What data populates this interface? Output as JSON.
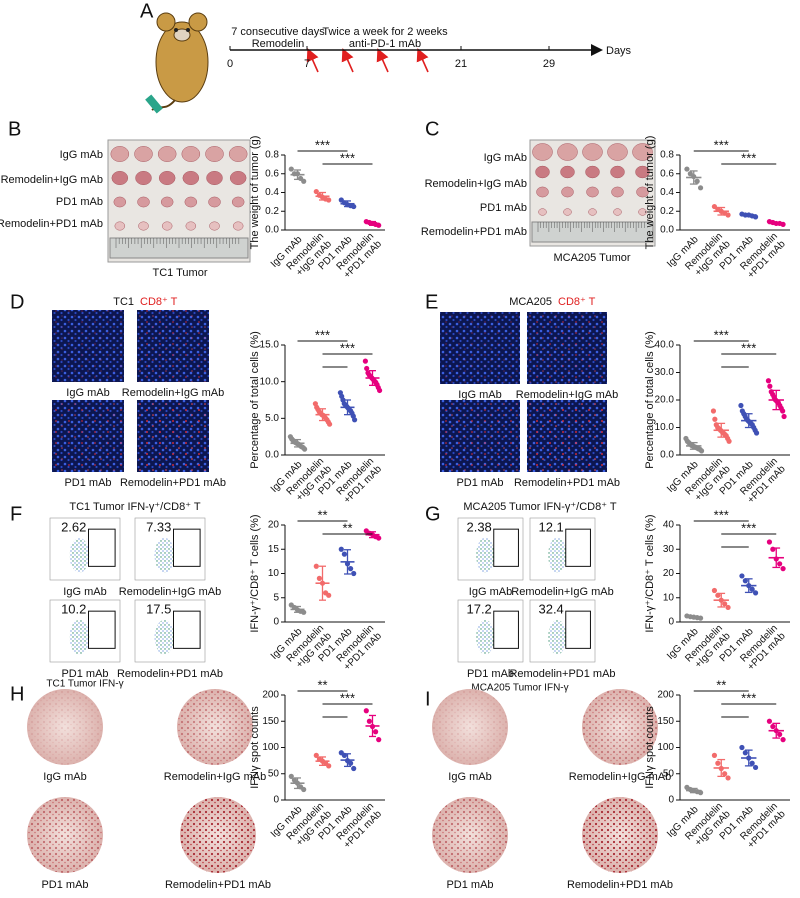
{
  "figure": {
    "a": {
      "letter": "A",
      "phase1": "7 consecutive days",
      "drug1": "Remodelin",
      "phase2": "Twice a week for 2 weeks",
      "drug2": "anti-PD-1 mAb",
      "axis_label": "Days",
      "day_ticks": [
        0,
        7,
        21,
        29
      ]
    },
    "b": {
      "letter": "B",
      "row_labels": [
        "IgG mAb",
        "Remodelin+IgG mAb",
        "PD1 mAb",
        "Remodelin+PD1 mAb"
      ],
      "caption": "TC1 Tumor"
    },
    "c": {
      "letter": "C",
      "row_labels": [
        "IgG mAb",
        "Remodelin+IgG mAb",
        "PD1 mAb",
        "Remodelin+PD1 mAb"
      ],
      "caption": "MCA205 Tumor"
    },
    "d": {
      "letter": "D",
      "header": "TC1",
      "stain": "CD8⁺ T",
      "image_labels": [
        "IgG mAb",
        "Remodelin+IgG mAb",
        "PD1 mAb",
        "Remodelin+PD1 mAb"
      ]
    },
    "e": {
      "letter": "E",
      "header": "MCA205",
      "stain": "CD8⁺ T",
      "image_labels": [
        "IgG mAb",
        "Remodelin+IgG mAb",
        "PD1 mAb",
        "Remodelin+PD1 mAb"
      ]
    },
    "f": {
      "letter": "F",
      "header": "TC1 Tumor IFN-γ⁺/CD8⁺ T",
      "image_labels": [
        "IgG mAb",
        "Remodelin+IgG mAb",
        "PD1 mAb",
        "Remodelin+PD1 mAb"
      ],
      "gate_values": [
        2.62,
        7.33,
        10.2,
        17.5
      ]
    },
    "g": {
      "letter": "G",
      "header": "MCA205 Tumor IFN-γ⁺/CD8⁺ T",
      "image_labels": [
        "IgG mAb",
        "Remodelin+IgG mAb",
        "PD1 mAb",
        "Remodelin+PD1 mAb"
      ],
      "gate_values": [
        2.38,
        12.1,
        17.2,
        32.4
      ]
    },
    "h": {
      "letter": "H",
      "header": "TC1 Tumor IFN-γ",
      "image_labels": [
        "IgG mAb",
        "Remodelin+IgG mAb",
        "PD1 mAb",
        "Remodelin+PD1 mAb"
      ]
    },
    "i": {
      "letter": "I",
      "header": "MCA205 Tumor IFN-γ",
      "image_labels": [
        "IgG mAb",
        "Remodelin+IgG mAb",
        "PD1 mAb",
        "Remodelin+PD1 mAb"
      ]
    }
  },
  "chart_data": [
    {
      "type": "dot",
      "y_label": "The weight of tumor (g)",
      "categories": [
        "IgG mAb",
        "Remodelin +IgG mAb",
        "PD1 mAb",
        "Remodelin +PD1 mAb"
      ],
      "colors": [
        "#8c8c8c",
        "#f26b6b",
        "#3f51b5",
        "#e6007e"
      ],
      "points": [
        [
          0.65,
          0.6,
          0.6,
          0.55,
          0.52
        ],
        [
          0.41,
          0.37,
          0.35,
          0.33,
          0.32
        ],
        [
          0.32,
          0.29,
          0.27,
          0.26,
          0.25
        ],
        [
          0.09,
          0.08,
          0.07,
          0.06,
          0.05
        ]
      ],
      "means": [
        0.59,
        0.36,
        0.28,
        0.07
      ],
      "errors": [
        0.05,
        0.04,
        0.03,
        0.02
      ],
      "ylim": [
        0,
        0.8
      ],
      "yticks": [
        {
          "value": 0,
          "label": "0.0"
        },
        0.2,
        0.4,
        0.6,
        0.8
      ],
      "significance": [
        {
          "from": 0,
          "to": 2,
          "label": "***"
        },
        {
          "from": 1,
          "to": 3,
          "label": "***"
        }
      ]
    },
    {
      "type": "dot",
      "y_label": "The weight of tumor (g)",
      "categories": [
        "IgG mAb",
        "Remodelin +IgG mAb",
        "PD1 mAb",
        "Remodelin +PD1 mAb"
      ],
      "colors": [
        "#8c8c8c",
        "#f26b6b",
        "#3f51b5",
        "#e6007e"
      ],
      "points": [
        [
          0.65,
          0.6,
          0.57,
          0.52,
          0.45
        ],
        [
          0.25,
          0.22,
          0.2,
          0.18,
          0.16
        ],
        [
          0.17,
          0.16,
          0.16,
          0.15,
          0.14
        ],
        [
          0.09,
          0.08,
          0.07,
          0.07,
          0.06
        ]
      ],
      "means": [
        0.56,
        0.2,
        0.16,
        0.07
      ],
      "errors": [
        0.07,
        0.04,
        0.01,
        0.01
      ],
      "ylim": [
        0,
        0.8
      ],
      "yticks": [
        {
          "value": 0,
          "label": "0.0"
        },
        0.2,
        0.4,
        0.6,
        0.8
      ],
      "significance": [
        {
          "from": 0,
          "to": 2,
          "label": "***"
        },
        {
          "from": 1,
          "to": 3,
          "label": "***"
        }
      ]
    },
    {
      "type": "dot",
      "y_label": "Percentage of total cells (%)",
      "categories": [
        "IgG mAb",
        "Remodelin +IgG mAb",
        "PD1 mAb",
        "Remodelin +PD1 mAb"
      ],
      "colors": [
        "#8c8c8c",
        "#f26b6b",
        "#3f51b5",
        "#e6007e"
      ],
      "points": [
        [
          2.5,
          2.2,
          2.0,
          1.8,
          1.7,
          1.6,
          1.5,
          1.4,
          1.2,
          1.1,
          1.0,
          0.8
        ],
        [
          7.0,
          6.5,
          6.2,
          5.9,
          5.7,
          5.5,
          5.4,
          5.2,
          5.0,
          4.8,
          4.5,
          4.2
        ],
        [
          8.5,
          8.0,
          7.5,
          7.0,
          6.8,
          6.6,
          6.4,
          6.2,
          6.0,
          5.7,
          5.3,
          4.8
        ],
        [
          12.8,
          11.8,
          11.2,
          10.9,
          10.7,
          10.5,
          10.3,
          10.1,
          9.9,
          9.6,
          9.2,
          8.8
        ]
      ],
      "means": [
        1.6,
        5.5,
        6.5,
        10.5
      ],
      "errors": [
        0.5,
        0.8,
        1.0,
        1.0
      ],
      "ylim": [
        0,
        15
      ],
      "yticks": [
        {
          "value": 0,
          "label": "0.0"
        },
        {
          "value": 5,
          "label": "5.0"
        },
        {
          "value": 10,
          "label": "10.0"
        },
        {
          "value": 15,
          "label": "15.0"
        }
      ],
      "significance": [
        {
          "from": 0,
          "to": 2,
          "label": "***"
        },
        {
          "from": 1,
          "to": 3,
          "label": "***"
        },
        {
          "from": 1,
          "to": 2
        }
      ]
    },
    {
      "type": "dot",
      "y_label": "Percentage of total cells (%)",
      "categories": [
        "IgG mAb",
        "Remodelin +IgG mAb",
        "PD1 mAb",
        "Remodelin +PD1 mAb"
      ],
      "colors": [
        "#8c8c8c",
        "#f26b6b",
        "#3f51b5",
        "#e6007e"
      ],
      "points": [
        [
          6,
          5,
          4.5,
          4,
          3.5,
          3.2,
          3,
          2.8,
          2.5,
          2.2,
          2,
          1.5
        ],
        [
          16,
          13,
          11,
          10,
          9.5,
          9,
          8.5,
          8,
          7.5,
          7,
          6,
          5
        ],
        [
          18,
          16,
          15,
          14,
          13,
          12.5,
          12,
          11.5,
          11,
          10,
          9,
          8
        ],
        [
          27,
          25,
          23,
          22,
          21,
          20,
          19.5,
          19,
          18,
          17,
          16,
          14
        ]
      ],
      "means": [
        3.3,
        9,
        12.5,
        20
      ],
      "errors": [
        1.2,
        2.5,
        2.5,
        3.5
      ],
      "ylim": [
        0,
        40
      ],
      "yticks": [
        {
          "value": 0,
          "label": "0.0"
        },
        {
          "value": 10,
          "label": "10.0"
        },
        {
          "value": 20,
          "label": "20.0"
        },
        {
          "value": 30,
          "label": "30.0"
        },
        {
          "value": 40,
          "label": "40.0"
        }
      ],
      "significance": [
        {
          "from": 0,
          "to": 2,
          "label": "***"
        },
        {
          "from": 1,
          "to": 3,
          "label": "***"
        },
        {
          "from": 1,
          "to": 2
        }
      ]
    },
    {
      "type": "dot",
      "y_label": "IFN-γ⁺/CD8⁺ T cells (%)",
      "categories": [
        "IgG mAb",
        "Remodelin +IgG mAb",
        "PD1 mAb",
        "Remodelin +PD1 mAb"
      ],
      "colors": [
        "#8c8c8c",
        "#f26b6b",
        "#3f51b5",
        "#e6007e"
      ],
      "points": [
        [
          3.5,
          3,
          2.5,
          2.2,
          2
        ],
        [
          11.5,
          9,
          8,
          6,
          5.5
        ],
        [
          15,
          14,
          12,
          11,
          10
        ],
        [
          18.8,
          18.3,
          18,
          17.6,
          17.3
        ]
      ],
      "means": [
        2.6,
        8,
        12.4,
        18
      ],
      "errors": [
        0.6,
        3.5,
        2.5,
        0.6
      ],
      "ylim": [
        0,
        20
      ],
      "yticks": [
        0,
        5,
        10,
        15,
        20
      ],
      "significance": [
        {
          "from": 0,
          "to": 2,
          "label": "**"
        },
        {
          "from": 1,
          "to": 3,
          "label": "**"
        }
      ]
    },
    {
      "type": "dot",
      "y_label": "IFN-γ⁺/CD8⁺ T cells (%)",
      "categories": [
        "IgG mAb",
        "Remodelin +IgG mAb",
        "PD1 mAb",
        "Remodelin +PD1 mAb"
      ],
      "colors": [
        "#8c8c8c",
        "#f26b6b",
        "#3f51b5",
        "#e6007e"
      ],
      "points": [
        [
          2.5,
          2.2,
          2,
          1.8,
          1.6
        ],
        [
          13,
          11,
          9,
          7.5,
          6
        ],
        [
          19,
          17,
          15,
          13.5,
          12
        ],
        [
          33,
          30,
          26,
          24,
          22
        ]
      ],
      "means": [
        2,
        9,
        15,
        26.5
      ],
      "errors": [
        0.3,
        2.8,
        2.8,
        4
      ],
      "ylim": [
        0,
        40
      ],
      "yticks": [
        0,
        10,
        20,
        30,
        40
      ],
      "significance": [
        {
          "from": 0,
          "to": 2,
          "label": "***"
        },
        {
          "from": 1,
          "to": 3,
          "label": "***"
        },
        {
          "from": 1,
          "to": 2
        }
      ]
    },
    {
      "type": "dot",
      "y_label": "IFNγ spot counts",
      "categories": [
        "IgG mAb",
        "Remodelin +IgG mAb",
        "PD1 mAb",
        "Remodelin +PD1 mAb"
      ],
      "colors": [
        "#8c8c8c",
        "#f26b6b",
        "#3f51b5",
        "#e6007e"
      ],
      "points": [
        [
          45,
          38,
          32,
          25,
          20
        ],
        [
          85,
          78,
          74,
          70,
          65
        ],
        [
          90,
          85,
          75,
          70,
          60
        ],
        [
          170,
          150,
          140,
          130,
          115
        ]
      ],
      "means": [
        32,
        74,
        76,
        141
      ],
      "errors": [
        10,
        8,
        12,
        20
      ],
      "ylim": [
        0,
        200
      ],
      "yticks": [
        0,
        50,
        100,
        150,
        200
      ],
      "significance": [
        {
          "from": 0,
          "to": 2,
          "label": "**"
        },
        {
          "from": 1,
          "to": 3,
          "label": "***"
        },
        {
          "from": 1,
          "to": 2
        }
      ]
    },
    {
      "type": "dot",
      "y_label": "IFNγ spot counts",
      "categories": [
        "IgG mAb",
        "Remodelin +IgG mAb",
        "PD1 mAb",
        "Remodelin +PD1 mAb"
      ],
      "colors": [
        "#8c8c8c",
        "#f26b6b",
        "#3f51b5",
        "#e6007e"
      ],
      "points": [
        [
          24,
          20,
          18,
          16,
          14
        ],
        [
          85,
          70,
          60,
          50,
          42
        ],
        [
          100,
          90,
          80,
          70,
          62
        ],
        [
          150,
          140,
          132,
          125,
          115
        ]
      ],
      "means": [
        18,
        61,
        80,
        132
      ],
      "errors": [
        4,
        16,
        15,
        14
      ],
      "ylim": [
        0,
        200
      ],
      "yticks": [
        0,
        50,
        100,
        150,
        200
      ],
      "significance": [
        {
          "from": 0,
          "to": 2,
          "label": "**"
        },
        {
          "from": 1,
          "to": 3,
          "label": "***"
        },
        {
          "from": 1,
          "to": 2
        }
      ]
    }
  ]
}
